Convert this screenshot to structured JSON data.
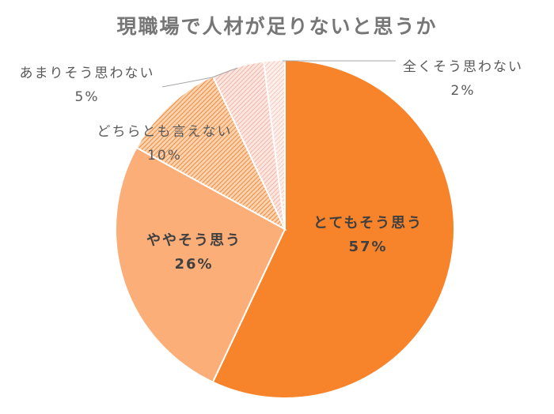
{
  "title": "現職場で人材が足りないと思うか",
  "chart_data": {
    "type": "pie",
    "title": "現職場で人材が足りないと思うか",
    "categories": [
      "とてもそう思う",
      "ややそう思う",
      "どちらとも言えない",
      "あまりそう思わない",
      "全くそう思わない"
    ],
    "values": [
      57,
      26,
      10,
      5,
      2
    ],
    "unit": "%",
    "start_angle": "12 o'clock, clockwise",
    "colors": [
      "#F7832A",
      "#FBAE78",
      "#F8B47E (hatched)",
      "#F6C6BA (hatched)",
      "#F9D7D0 (hatched)"
    ],
    "legend": "none (data labels with category names)"
  },
  "labels": [
    {
      "name": "とてもそう思う",
      "pct": "57%"
    },
    {
      "name": "ややそう思う",
      "pct": "26%"
    },
    {
      "name": "どちらとも言えない",
      "pct": "10%"
    },
    {
      "name": "あまりそう思わない",
      "pct": "5%"
    },
    {
      "name": "全くそう思わない",
      "pct": "2%"
    }
  ]
}
